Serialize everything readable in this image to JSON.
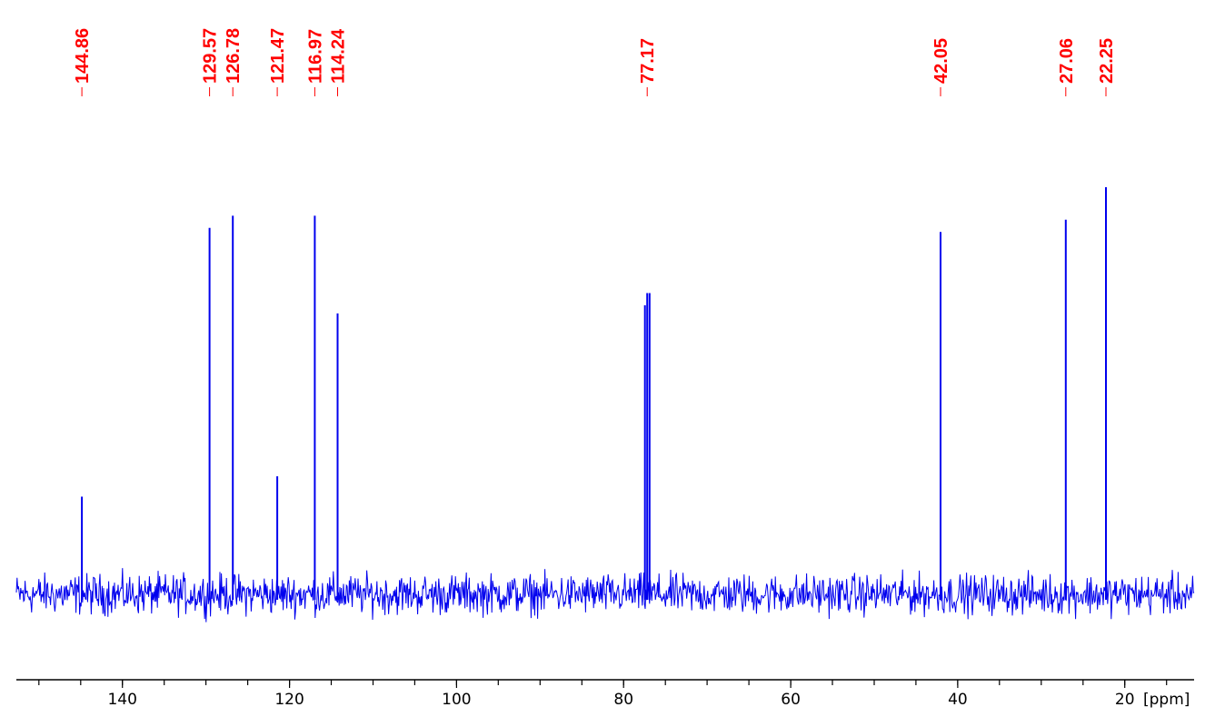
{
  "chart_data": {
    "type": "line",
    "xlabel": "[ppm]",
    "x_reversed": true,
    "xlim": [
      152.7,
      11.7
    ],
    "ylim": [
      -0.1,
      1.0
    ],
    "x_ticks": [
      140,
      120,
      100,
      80,
      60,
      40,
      20
    ],
    "x_tick_labels": [
      "140",
      "120",
      "100",
      "80",
      "60",
      "40",
      "20"
    ],
    "minor_tick_step": 5,
    "series_color": "#0000ee",
    "label_color": "#ff0000",
    "noise_level": 0.03,
    "peaks": [
      {
        "ppm": 144.86,
        "label": "144.86",
        "intensity": 0.24
      },
      {
        "ppm": 129.57,
        "label": "129.57",
        "intensity": 0.9
      },
      {
        "ppm": 126.78,
        "label": "126.78",
        "intensity": 0.93
      },
      {
        "ppm": 121.47,
        "label": "121.47",
        "intensity": 0.29
      },
      {
        "ppm": 116.97,
        "label": "116.97",
        "intensity": 0.93
      },
      {
        "ppm": 114.24,
        "label": "114.24",
        "intensity": 0.69
      },
      {
        "ppm": 77.17,
        "label": "77.17",
        "intensity": 0.74
      },
      {
        "ppm": 42.05,
        "label": "42.05",
        "intensity": 0.89
      },
      {
        "ppm": 27.06,
        "label": "27.06",
        "intensity": 0.92
      },
      {
        "ppm": 22.25,
        "label": "22.25",
        "intensity": 1.0
      }
    ],
    "extra_peaks": [
      {
        "ppm": 77.45,
        "intensity": 0.71
      },
      {
        "ppm": 76.89,
        "intensity": 0.74
      }
    ]
  }
}
